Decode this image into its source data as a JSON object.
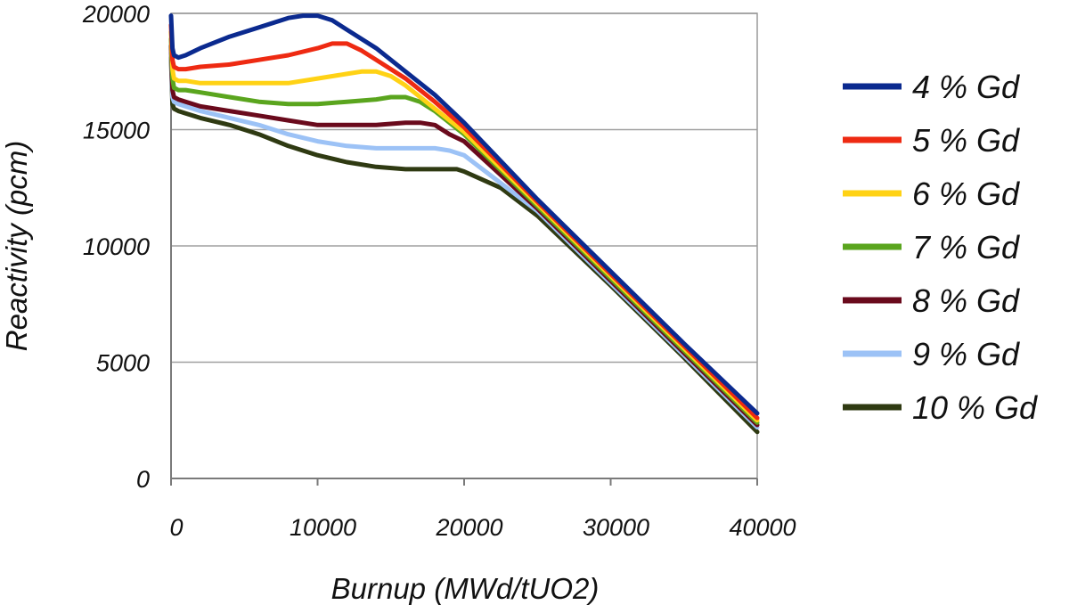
{
  "chart_data": {
    "type": "line",
    "title": "",
    "xlabel": "Burnup (MWd/tUO2)",
    "ylabel": "Reactivity (pcm)",
    "xlim": [
      0,
      40000
    ],
    "ylim": [
      0,
      20000
    ],
    "xticks": [
      "0",
      "10000",
      "20000",
      "30000",
      "40000"
    ],
    "yticks": [
      "0",
      "5000",
      "10000",
      "15000",
      "20000"
    ],
    "grid": "horizontal",
    "legend_position": "right",
    "series": [
      {
        "name": "4 % Gd",
        "color": "#0b2a8f",
        "x": [
          0,
          100,
          200,
          500,
          1000,
          2000,
          4000,
          6000,
          8000,
          9000,
          10000,
          11000,
          12000,
          14000,
          16000,
          18000,
          20000,
          25000,
          30000,
          35000,
          40000
        ],
        "y": [
          19900,
          18500,
          18200,
          18100,
          18200,
          18500,
          19000,
          19400,
          19800,
          19900,
          19900,
          19700,
          19300,
          18500,
          17500,
          16500,
          15300,
          12000,
          8900,
          5800,
          2800
        ]
      },
      {
        "name": "5 % Gd",
        "color": "#ee2a12",
        "x": [
          0,
          100,
          200,
          500,
          1000,
          2000,
          4000,
          6000,
          8000,
          10000,
          11000,
          12000,
          13000,
          14000,
          16000,
          18000,
          20000,
          25000,
          30000,
          35000,
          40000
        ],
        "y": [
          19500,
          18000,
          17700,
          17600,
          17600,
          17700,
          17800,
          18000,
          18200,
          18500,
          18700,
          18700,
          18400,
          18000,
          17200,
          16200,
          15100,
          11900,
          8800,
          5700,
          2600
        ]
      },
      {
        "name": "6 % Gd",
        "color": "#ffd215",
        "x": [
          0,
          100,
          200,
          500,
          1000,
          2000,
          4000,
          6000,
          8000,
          10000,
          12000,
          13000,
          14000,
          15000,
          16000,
          18000,
          20000,
          25000,
          30000,
          35000,
          40000
        ],
        "y": [
          19200,
          17600,
          17200,
          17100,
          17100,
          17000,
          17000,
          17000,
          17000,
          17200,
          17400,
          17500,
          17500,
          17300,
          16900,
          15900,
          14900,
          11800,
          8700,
          5600,
          2500
        ]
      },
      {
        "name": "7 % Gd",
        "color": "#5aa51e",
        "x": [
          0,
          100,
          200,
          500,
          1000,
          2000,
          4000,
          6000,
          8000,
          10000,
          12000,
          14000,
          15000,
          16000,
          17000,
          18000,
          20000,
          25000,
          30000,
          35000,
          40000
        ],
        "y": [
          18900,
          17200,
          16800,
          16700,
          16700,
          16600,
          16400,
          16200,
          16100,
          16100,
          16200,
          16300,
          16400,
          16400,
          16200,
          15800,
          14800,
          11700,
          8600,
          5500,
          2400
        ]
      },
      {
        "name": "8 % Gd",
        "color": "#6a0a1c",
        "x": [
          0,
          100,
          200,
          500,
          1000,
          2000,
          4000,
          6000,
          8000,
          10000,
          12000,
          14000,
          16000,
          17000,
          18000,
          19000,
          20000,
          25000,
          30000,
          35000,
          40000
        ],
        "y": [
          18600,
          16700,
          16400,
          16300,
          16200,
          16000,
          15800,
          15600,
          15400,
          15200,
          15200,
          15200,
          15300,
          15300,
          15200,
          14800,
          14500,
          11600,
          8500,
          5400,
          2300
        ]
      },
      {
        "name": "9 % Gd",
        "color": "#9cc2f6",
        "x": [
          0,
          100,
          200,
          500,
          1000,
          2000,
          4000,
          6000,
          8000,
          10000,
          12000,
          14000,
          16000,
          18000,
          19000,
          20000,
          25000,
          30000,
          35000,
          40000
        ],
        "y": [
          18300,
          16400,
          16200,
          16100,
          16000,
          15800,
          15500,
          15200,
          14800,
          14500,
          14300,
          14200,
          14200,
          14200,
          14100,
          13900,
          11500,
          8400,
          5300,
          2200
        ]
      },
      {
        "name": "10 % Gd",
        "color": "#2f3a12",
        "x": [
          0,
          100,
          200,
          500,
          1000,
          2000,
          4000,
          6000,
          8000,
          10000,
          12000,
          14000,
          16000,
          18000,
          19000,
          19500,
          20000,
          22500,
          25000,
          30000,
          35000,
          40000
        ],
        "y": [
          18100,
          16100,
          15900,
          15800,
          15700,
          15500,
          15200,
          14800,
          14300,
          13900,
          13600,
          13400,
          13300,
          13300,
          13300,
          13300,
          13200,
          12500,
          11300,
          8300,
          5200,
          2000
        ]
      }
    ]
  }
}
